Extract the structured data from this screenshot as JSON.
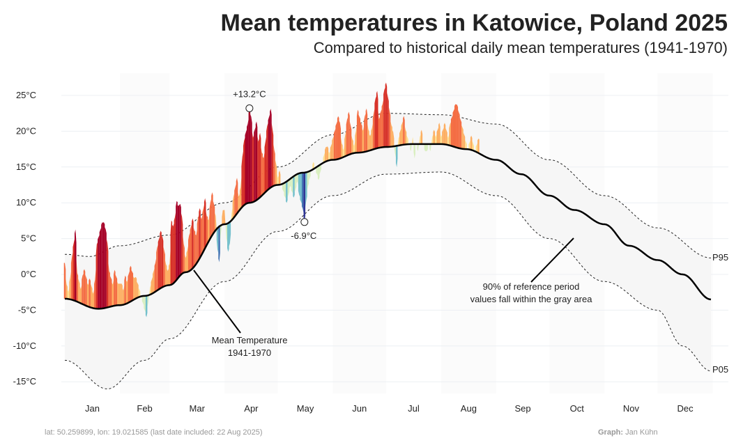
{
  "chart_data": {
    "type": "area",
    "title": "Mean temperatures in Katowice, Poland 2025",
    "subtitle": "Compared to historical daily mean temperatures (1941-1970)",
    "ylim": [
      -17,
      27
    ],
    "yticks": [
      25,
      20,
      15,
      10,
      5,
      0,
      -5,
      -10,
      -15
    ],
    "ytick_labels": [
      "25°C",
      "20°C",
      "15°C",
      "10°C",
      "5°C",
      "0°C",
      "-5°C",
      "-10°C",
      "-15°C"
    ],
    "months": [
      "Jan",
      "Feb",
      "Mar",
      "Apr",
      "May",
      "Jun",
      "Jul",
      "Aug",
      "Sep",
      "Oct",
      "Nov",
      "Dec"
    ],
    "reference_mean": {
      "doy": [
        1,
        20,
        32,
        46,
        60,
        69,
        91,
        105,
        121,
        135,
        152,
        166,
        182,
        196,
        213,
        227,
        244,
        258,
        274,
        288,
        305,
        319,
        335,
        349,
        365
      ],
      "values": [
        -3.4,
        -4.8,
        -4.3,
        -3,
        -1.5,
        0.3,
        7,
        10,
        12.5,
        14.2,
        16,
        17,
        17.8,
        18.2,
        18.2,
        17.5,
        16,
        14,
        11,
        9,
        7,
        4,
        2,
        0,
        -3.5
      ]
    },
    "p95": {
      "doy": [
        1,
        15,
        32,
        60,
        91,
        121,
        152,
        182,
        213,
        244,
        274,
        305,
        335,
        365
      ],
      "values": [
        2.8,
        2.5,
        4,
        5.5,
        10,
        15,
        19.5,
        22.5,
        22.3,
        21,
        16,
        11,
        6.5,
        2.3
      ]
    },
    "p05": {
      "doy": [
        1,
        25,
        46,
        60,
        91,
        121,
        152,
        182,
        213,
        244,
        274,
        305,
        335,
        349,
        365
      ],
      "values": [
        -12,
        -16,
        -12,
        -9,
        -1,
        6,
        11,
        14,
        14.3,
        11,
        5,
        -1,
        -5,
        -10,
        -13.5
      ]
    },
    "anomalies_2025": [
      5,
      2,
      1,
      3,
      6,
      8,
      10,
      4,
      3,
      2,
      4,
      5,
      4,
      3,
      4,
      3,
      2,
      4,
      9,
      10,
      11,
      12,
      12,
      11,
      9,
      5,
      4,
      3,
      5,
      4,
      3,
      3,
      3,
      2,
      4,
      3,
      4,
      5,
      4,
      3,
      3,
      2,
      1,
      0,
      -1,
      -2,
      -3,
      -1,
      1,
      2,
      3,
      4,
      6,
      7,
      8,
      7,
      5,
      3,
      2,
      3,
      9,
      8,
      9,
      11,
      10,
      10,
      8,
      4,
      2,
      3,
      5,
      6,
      7,
      5,
      4,
      6,
      7,
      5,
      6,
      7,
      4,
      3,
      5,
      6,
      4,
      2,
      -3,
      -5,
      -1,
      2,
      2,
      -2,
      -4,
      -3,
      1,
      3,
      4,
      5,
      2,
      3,
      7,
      9,
      10,
      11,
      13.2,
      12,
      9,
      10,
      11,
      8,
      9,
      6,
      5,
      7,
      9,
      10,
      11,
      8,
      5,
      3,
      1,
      2,
      0,
      -1,
      -2,
      -3,
      -2,
      -1,
      -2,
      -3,
      -2,
      -1,
      -3,
      -4,
      -5,
      -6.9,
      -4,
      -2,
      -1,
      0,
      1,
      0,
      -1,
      -2,
      -1,
      0,
      1,
      2,
      2,
      1,
      2,
      3,
      4,
      5,
      6,
      5,
      2,
      1,
      3,
      5,
      6,
      4,
      2,
      1,
      3,
      6,
      5,
      4,
      3,
      5,
      6,
      3,
      2,
      3,
      5,
      7,
      8,
      4,
      5,
      6,
      8,
      9,
      7,
      5,
      3,
      2,
      -1,
      -3,
      1,
      2,
      3,
      4,
      2,
      1,
      0,
      -1,
      1,
      -2,
      0,
      -1,
      1,
      2,
      0,
      -1,
      -1,
      0,
      -1,
      1,
      2,
      1,
      2,
      3,
      1,
      2,
      3,
      2,
      1,
      3,
      4,
      5,
      6,
      6,
      5,
      4,
      3,
      2,
      1,
      0,
      1,
      2,
      1,
      0,
      1,
      2
    ],
    "annotations": {
      "max_label": "+13.2°C",
      "min_label": "-6.9°C",
      "mean_label_1": "Mean Temperature",
      "mean_label_2": "1941-1970",
      "gray_label_1": "90% of reference period",
      "gray_label_2": "values fall within the gray area",
      "p95_label": "P95",
      "p05_label": "P05"
    }
  },
  "footer": {
    "source": "lat: 50.259899, lon: 19.021585 (last date included: 22 Aug 2025)",
    "credit_label": "Graph:",
    "credit_name": "Jan Kühn"
  }
}
